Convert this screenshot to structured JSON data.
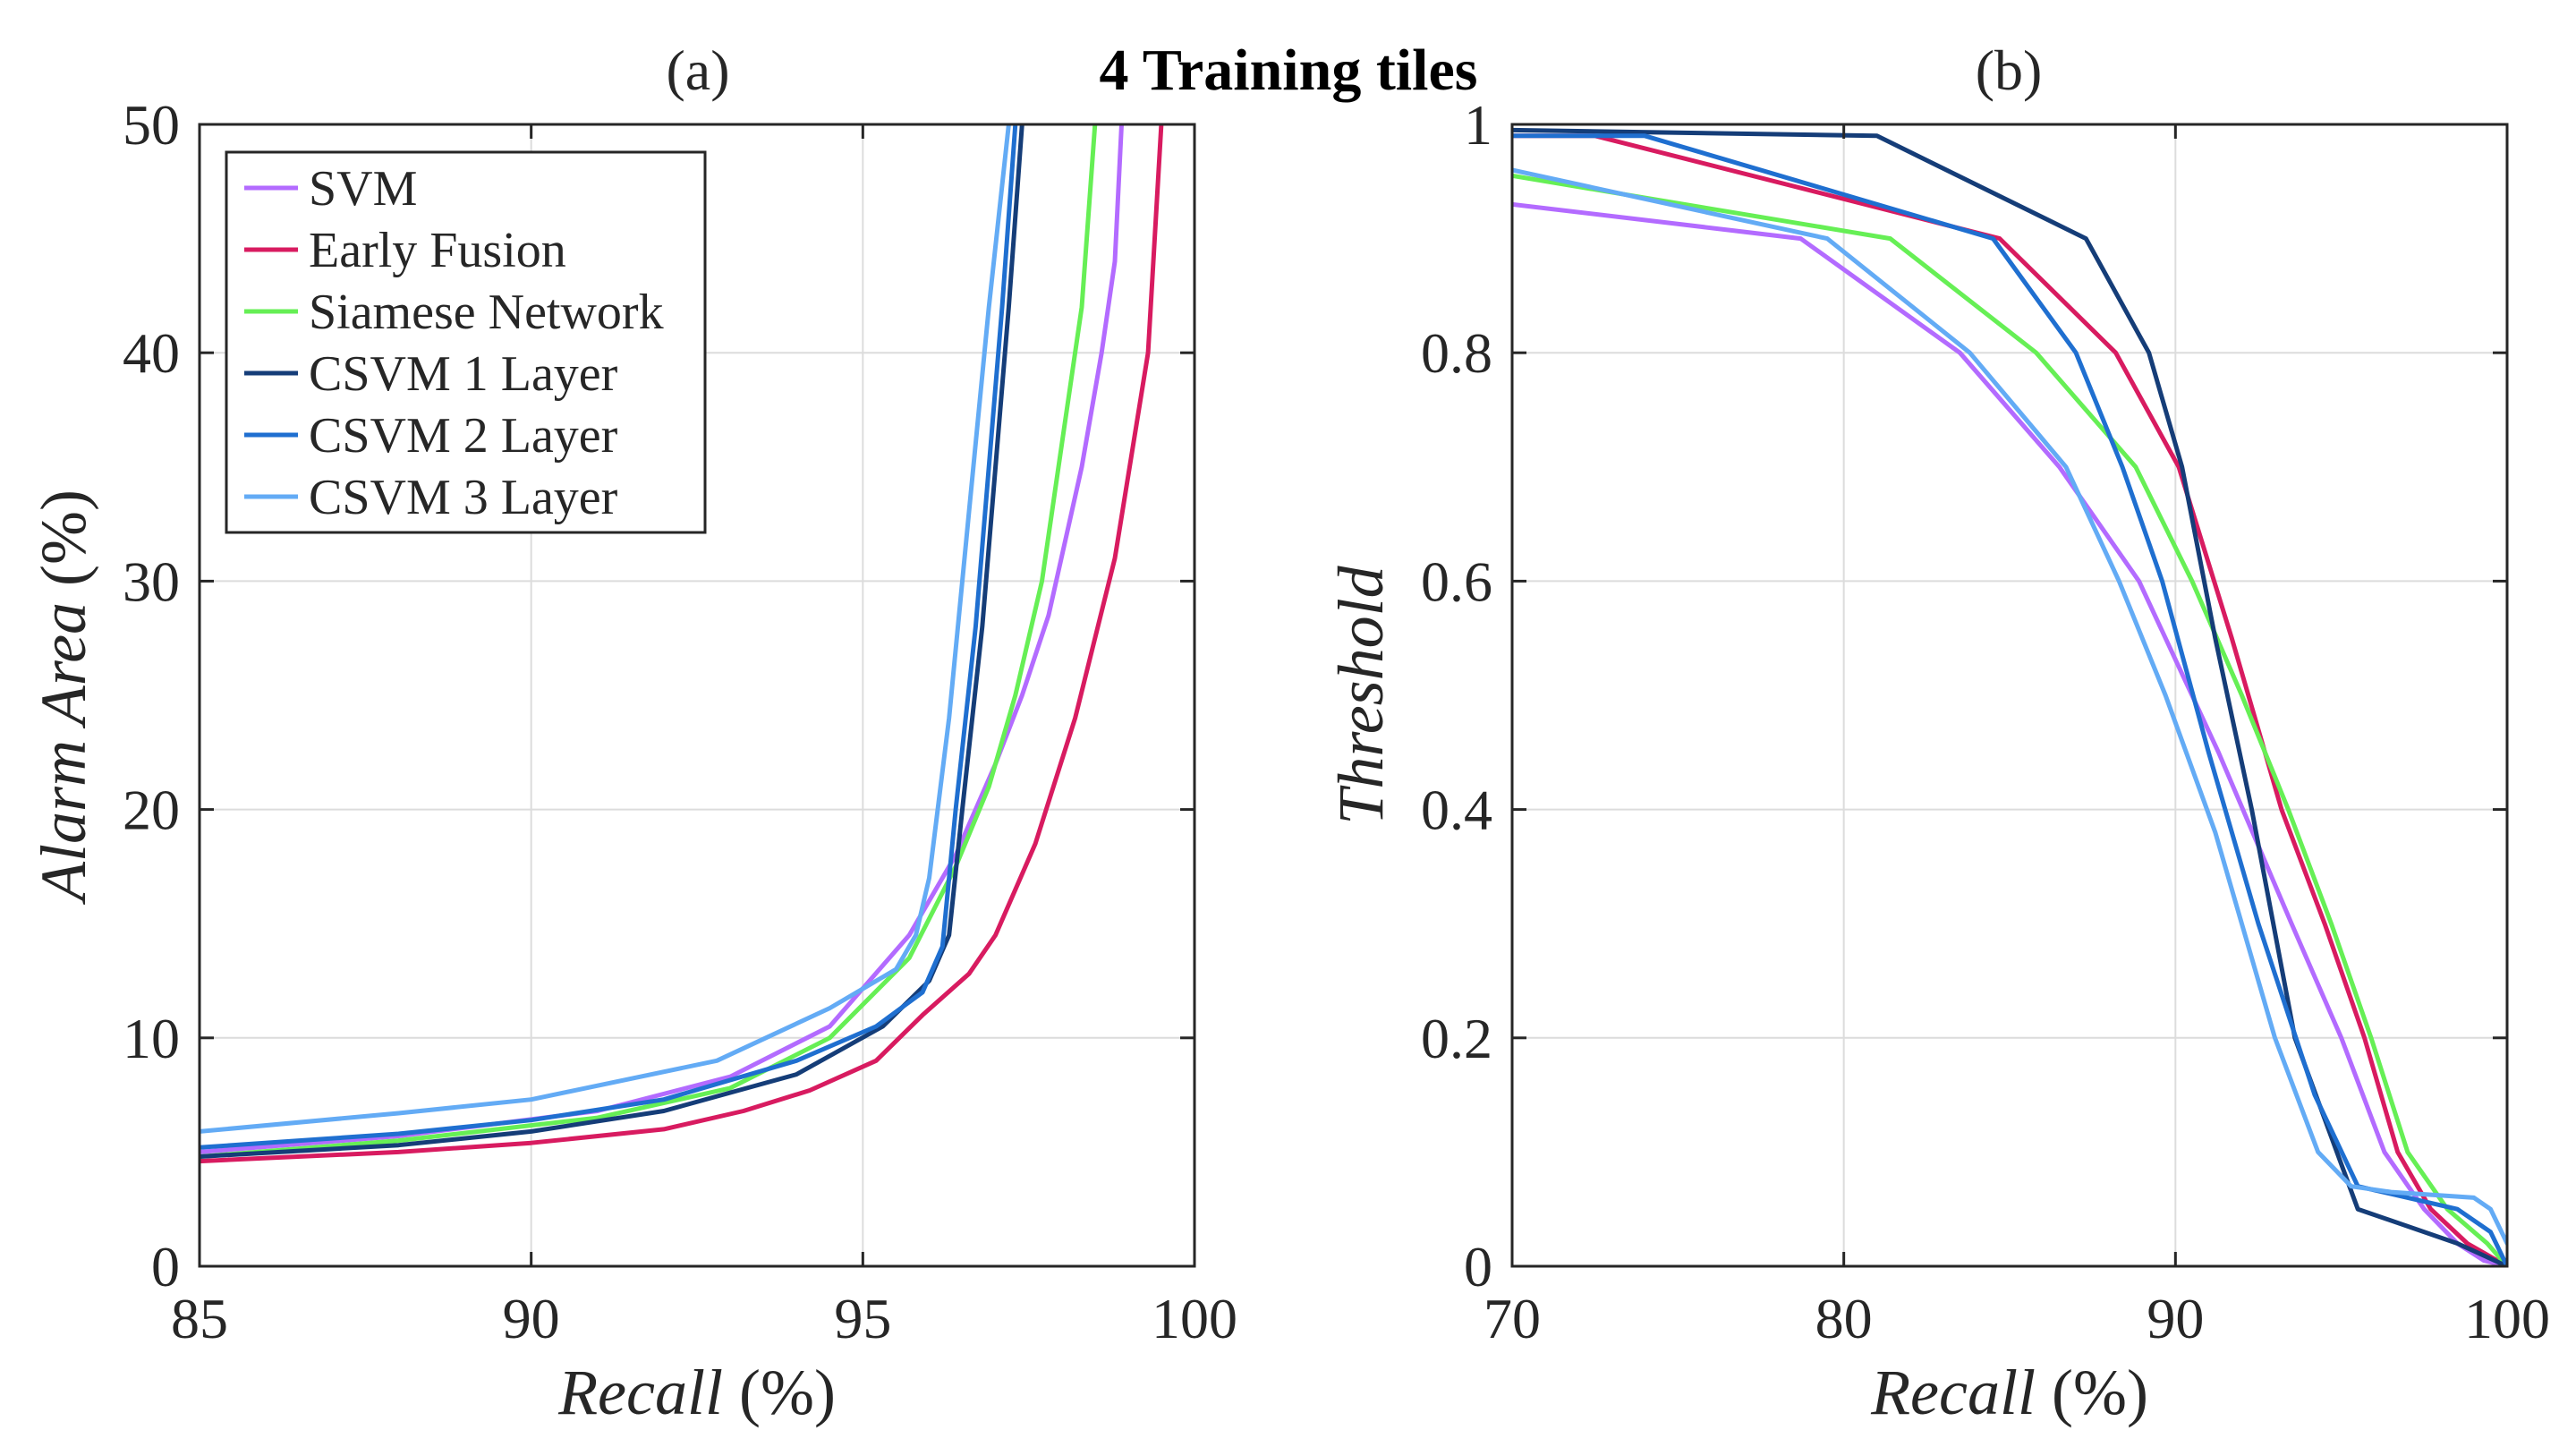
{
  "figure": {
    "suptitle": "4 Training tiles"
  },
  "colors": {
    "SVM": "#b36bff",
    "Early Fusion": "#d81b60",
    "Siamese Network": "#66ef55",
    "CSVM 1 Layer": "#153d78",
    "CSVM 2 Layer": "#1f6fd0",
    "CSVM 3 Layer": "#63abf5"
  },
  "legend": {
    "placement": "top-left of panel (a)",
    "entries": [
      "SVM",
      "Early Fusion",
      "Siamese Network",
      "CSVM 1 Layer",
      "CSVM 2 Layer",
      "CSVM 3 Layer"
    ]
  },
  "chart_data": [
    {
      "type": "line",
      "title": "(a)",
      "xlabel": "Recall",
      "xlabel_unit": "(%)",
      "ylabel": "Alarm Area",
      "ylabel_unit": "(%)",
      "xlim": [
        85,
        100
      ],
      "ylim": [
        0,
        50
      ],
      "xticks": [
        "85",
        "90",
        "95",
        "100"
      ],
      "yticks": [
        "0",
        "10",
        "20",
        "30",
        "40",
        "50"
      ],
      "grid": true,
      "series": [
        {
          "name": "SVM",
          "x": [
            85,
            88,
            91,
            93,
            94.5,
            95.7,
            96.4,
            97.0,
            97.4,
            97.8,
            98.3,
            98.6,
            98.8,
            98.9
          ],
          "y": [
            5.0,
            5.7,
            6.8,
            8.3,
            10.5,
            14.5,
            18.0,
            22.0,
            25.0,
            28.5,
            35.0,
            40.0,
            44.0,
            50.0
          ]
        },
        {
          "name": "Early Fusion",
          "x": [
            85,
            88,
            90,
            92,
            93.2,
            94.2,
            95.2,
            95.9,
            96.6,
            97.0,
            97.6,
            98.2,
            98.8,
            99.3,
            99.5
          ],
          "y": [
            4.6,
            5.0,
            5.4,
            6.0,
            6.8,
            7.7,
            9.0,
            11.0,
            12.8,
            14.5,
            18.5,
            24.0,
            31.0,
            40.0,
            50.0
          ]
        },
        {
          "name": "Siamese Network",
          "x": [
            85,
            88,
            91,
            93,
            94.5,
            95.7,
            96.4,
            96.9,
            97.3,
            97.7,
            98.0,
            98.3,
            98.5
          ],
          "y": [
            4.8,
            5.5,
            6.5,
            7.8,
            10.0,
            13.5,
            17.5,
            21.0,
            25.0,
            30.0,
            36.0,
            42.0,
            50.0
          ]
        },
        {
          "name": "CSVM 1 Layer",
          "x": [
            85,
            88,
            90,
            92,
            94,
            95.3,
            96.0,
            96.3,
            96.5,
            96.8,
            97.0,
            97.2,
            97.4
          ],
          "y": [
            4.8,
            5.3,
            5.9,
            6.8,
            8.4,
            10.5,
            12.5,
            14.5,
            20.0,
            28.0,
            35.0,
            42.0,
            50.0
          ]
        },
        {
          "name": "CSVM 2 Layer",
          "x": [
            85,
            88,
            90,
            92,
            94,
            95.2,
            95.9,
            96.2,
            96.4,
            96.7,
            96.9,
            97.1,
            97.3
          ],
          "y": [
            5.2,
            5.8,
            6.4,
            7.3,
            9.0,
            10.5,
            12.0,
            14.0,
            20.0,
            28.0,
            35.0,
            42.0,
            50.0
          ]
        },
        {
          "name": "CSVM 3 Layer",
          "x": [
            85,
            88,
            90,
            92.8,
            94.5,
            95.5,
            95.8,
            96.0,
            96.3,
            96.6,
            96.9,
            97.2
          ],
          "y": [
            5.9,
            6.7,
            7.3,
            9.0,
            11.3,
            13.0,
            14.5,
            17.0,
            24.0,
            33.0,
            42.0,
            50.0
          ]
        }
      ]
    },
    {
      "type": "line",
      "title": "(b)",
      "xlabel": "Recall",
      "xlabel_unit": "(%)",
      "ylabel": "Threshold",
      "xlim": [
        70,
        100
      ],
      "ylim": [
        0,
        1
      ],
      "xticks": [
        "70",
        "80",
        "90",
        "100"
      ],
      "yticks": [
        "0",
        "0.2",
        "0.4",
        "0.6",
        "0.8",
        "1"
      ],
      "grid": true,
      "series": [
        {
          "name": "SVM",
          "x": [
            70,
            78.7,
            83.5,
            86.5,
            88.9,
            91.3,
            93.5,
            95.0,
            96.3,
            97.5,
            98.5,
            99.3,
            100
          ],
          "y": [
            0.93,
            0.9,
            0.8,
            0.7,
            0.6,
            0.45,
            0.3,
            0.2,
            0.1,
            0.05,
            0.02,
            0.005,
            0.0
          ]
        },
        {
          "name": "Early Fusion",
          "x": [
            70,
            72.5,
            84.7,
            88.2,
            90.1,
            91.7,
            93.2,
            94.5,
            95.7,
            96.7,
            97.7,
            98.8,
            100
          ],
          "y": [
            0.99,
            0.99,
            0.9,
            0.8,
            0.7,
            0.55,
            0.4,
            0.3,
            0.2,
            0.1,
            0.05,
            0.02,
            0.0
          ]
        },
        {
          "name": "Siamese Network",
          "x": [
            70,
            81.4,
            85.8,
            88.8,
            90.5,
            92.0,
            93.4,
            94.7,
            95.9,
            97.0,
            98.2,
            99.4,
            100
          ],
          "y": [
            0.955,
            0.9,
            0.8,
            0.7,
            0.6,
            0.5,
            0.4,
            0.3,
            0.2,
            0.1,
            0.05,
            0.02,
            0.0
          ]
        },
        {
          "name": "CSVM 1 Layer",
          "x": [
            70,
            81.0,
            87.3,
            89.2,
            90.2,
            91.2,
            92.3,
            93.6,
            95.5,
            98.5,
            100
          ],
          "y": [
            0.995,
            0.99,
            0.9,
            0.8,
            0.7,
            0.55,
            0.4,
            0.2,
            0.05,
            0.02,
            0.0
          ]
        },
        {
          "name": "CSVM 2 Layer",
          "x": [
            70,
            74.0,
            84.5,
            87.0,
            88.4,
            89.6,
            91.0,
            92.5,
            94.2,
            95.5,
            98.5,
            99.5,
            100
          ],
          "y": [
            0.99,
            0.99,
            0.9,
            0.8,
            0.7,
            0.6,
            0.45,
            0.3,
            0.15,
            0.07,
            0.05,
            0.03,
            0.0
          ]
        },
        {
          "name": "CSVM 3 Layer",
          "x": [
            70,
            79.5,
            83.8,
            86.7,
            88.3,
            89.7,
            91.2,
            93.0,
            94.3,
            95.3,
            96.5,
            99.0,
            99.5,
            100
          ],
          "y": [
            0.96,
            0.9,
            0.8,
            0.7,
            0.6,
            0.5,
            0.38,
            0.2,
            0.1,
            0.07,
            0.065,
            0.06,
            0.05,
            0.02
          ]
        }
      ]
    }
  ]
}
